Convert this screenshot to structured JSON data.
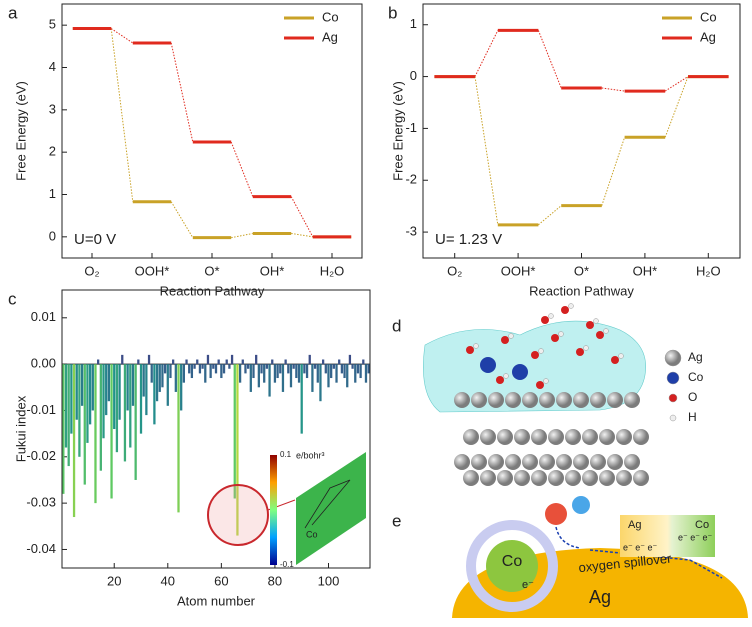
{
  "chart_data": [
    {
      "type": "step",
      "panel_label": "a",
      "annotation": "U=0 V",
      "xlabel": "Reaction Pathway",
      "ylabel": "Free Energy (eV)",
      "categories": [
        "O₂",
        "OOH*",
        "O*",
        "OH*",
        "H₂O"
      ],
      "series": [
        {
          "name": "Co",
          "color": "#c9a227",
          "values": [
            4.92,
            0.83,
            -0.02,
            0.08,
            0
          ]
        },
        {
          "name": "Ag",
          "color": "#e02a1e",
          "values": [
            4.92,
            4.58,
            2.24,
            0.95,
            0
          ]
        }
      ],
      "ylim": [
        -0.5,
        5.5
      ],
      "yticks": [
        0,
        1,
        2,
        3,
        4,
        5
      ],
      "legend": "upper right"
    },
    {
      "type": "step",
      "panel_label": "b",
      "annotation": "U= 1.23 V",
      "xlabel": "Reaction Pathway",
      "ylabel": "Free Energy (eV)",
      "categories": [
        "O₂",
        "OOH*",
        "O*",
        "OH*",
        "H₂O"
      ],
      "series": [
        {
          "name": "Co",
          "color": "#c9a227",
          "values": [
            0,
            -2.86,
            -2.49,
            -1.17,
            0
          ]
        },
        {
          "name": "Ag",
          "color": "#e02a1e",
          "values": [
            0,
            0.89,
            -0.22,
            -0.28,
            0
          ]
        }
      ],
      "ylim": [
        -3.5,
        1.4
      ],
      "yticks": [
        -3,
        -2,
        -1,
        0,
        1
      ],
      "legend": "upper right"
    },
    {
      "type": "bar",
      "panel_label": "c",
      "xlabel": "Atom number",
      "ylabel": "Fukui index",
      "colormap": "viridis",
      "x": [
        1,
        2,
        3,
        4,
        5,
        6,
        7,
        8,
        9,
        10,
        11,
        12,
        13,
        14,
        15,
        16,
        17,
        18,
        19,
        20,
        21,
        22,
        23,
        24,
        25,
        26,
        27,
        28,
        29,
        30,
        31,
        32,
        33,
        34,
        35,
        36,
        37,
        38,
        39,
        40,
        41,
        42,
        43,
        44,
        45,
        46,
        47,
        48,
        49,
        50,
        51,
        52,
        53,
        54,
        55,
        56,
        57,
        58,
        59,
        60,
        61,
        62,
        63,
        64,
        65,
        66,
        67,
        68,
        69,
        70,
        71,
        72,
        73,
        74,
        75,
        76,
        77,
        78,
        79,
        80,
        81,
        82,
        83,
        84,
        85,
        86,
        87,
        88,
        89,
        90,
        91,
        92,
        93,
        94,
        95,
        96,
        97,
        98,
        99,
        100,
        101,
        102,
        103,
        104,
        105,
        106,
        107,
        108,
        109,
        110,
        111,
        112,
        113,
        114,
        115
      ],
      "values": [
        -0.028,
        -0.018,
        -0.022,
        -0.015,
        -0.033,
        -0.012,
        -0.02,
        -0.009,
        -0.026,
        -0.017,
        -0.013,
        -0.01,
        -0.03,
        0.001,
        -0.023,
        -0.016,
        -0.011,
        -0.008,
        -0.029,
        -0.014,
        -0.019,
        -0.012,
        0.002,
        -0.021,
        -0.01,
        -0.018,
        -0.009,
        -0.025,
        0.001,
        -0.015,
        -0.007,
        -0.011,
        0.002,
        -0.004,
        -0.013,
        -0.008,
        -0.006,
        -0.005,
        -0.002,
        -0.009,
        -0.003,
        0.001,
        -0.006,
        -0.032,
        -0.01,
        -0.004,
        0.001,
        -0.002,
        -0.003,
        -0.001,
        0.001,
        -0.002,
        -0.001,
        -0.004,
        0.002,
        -0.003,
        -0.001,
        -0.002,
        0.001,
        -0.003,
        -0.002,
        0.001,
        -0.001,
        0.002,
        -0.029,
        -0.037,
        -0.004,
        0.001,
        -0.002,
        -0.001,
        -0.006,
        -0.003,
        0.002,
        -0.005,
        -0.002,
        -0.004,
        -0.001,
        -0.007,
        0.001,
        -0.004,
        -0.003,
        -0.002,
        -0.006,
        0.001,
        -0.002,
        -0.005,
        -0.001,
        -0.003,
        -0.004,
        -0.015,
        -0.002,
        -0.003,
        0.002,
        -0.006,
        -0.001,
        -0.004,
        -0.008,
        0.001,
        -0.002,
        -0.005,
        -0.003,
        -0.001,
        -0.004,
        0.001,
        -0.002,
        -0.003,
        -0.005,
        0.002,
        -0.001,
        -0.004,
        -0.002,
        -0.003,
        0.001,
        -0.004,
        -0.002
      ],
      "xlim": [
        0.5,
        115.5
      ],
      "ylim": [
        -0.044,
        0.016
      ],
      "xticks": [
        20,
        40,
        60,
        80,
        100
      ],
      "yticks": [
        0.01,
        {
          "value": 0,
          "label": "0.00"
        },
        -0.01,
        -0.02,
        -0.03,
        -0.04
      ],
      "inset": {
        "colorbar_ticks": [
          0.1,
          -0.1
        ],
        "unit": "e/bohr³",
        "atom_label": "Co"
      }
    }
  ],
  "panel_d": {
    "label": "d",
    "legend": [
      "Ag",
      "Co",
      "O",
      "H"
    ]
  },
  "panel_e": {
    "label": "e",
    "core": "Co",
    "support": "Ag",
    "process": "oxygen spillover",
    "electron": "e⁻",
    "inset_left": "Ag",
    "inset_right": "Co",
    "inset_electrons": "e⁻ e⁻ e⁻"
  }
}
